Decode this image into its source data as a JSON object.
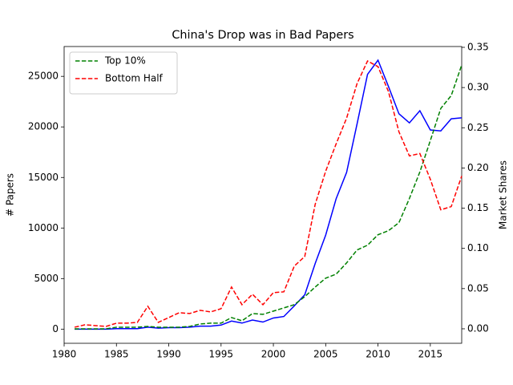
{
  "chart_data": {
    "type": "line",
    "title": "China's Drop was in Bad Papers",
    "ylabel": "# Papers",
    "y2label": "Market Shares",
    "x": [
      1981,
      1982,
      1983,
      1984,
      1985,
      1986,
      1987,
      1988,
      1989,
      1990,
      1991,
      1992,
      1993,
      1994,
      1995,
      1996,
      1997,
      1998,
      1999,
      2000,
      2001,
      2002,
      2003,
      2004,
      2005,
      2006,
      2007,
      2008,
      2009,
      2010,
      2011,
      2012,
      2013,
      2014,
      2015,
      2016,
      2017,
      2018
    ],
    "xlim": [
      1980,
      2018
    ],
    "xticks": [
      1980,
      1985,
      1990,
      1995,
      2000,
      2005,
      2010,
      2015
    ],
    "ylim": [
      -1400,
      27950
    ],
    "yticks": [
      0,
      5000,
      10000,
      15000,
      20000,
      25000
    ],
    "y2lim": [
      -0.018,
      0.351
    ],
    "y2ticks": [
      {
        "value": 0,
        "label": "0.00"
      },
      {
        "value": 0.05,
        "label": "0.05"
      },
      {
        "value": 0.1,
        "label": "0.10"
      },
      {
        "value": 0.15,
        "label": "0.15"
      },
      {
        "value": 0.2,
        "label": "0.20"
      },
      {
        "value": 0.25,
        "label": "0.25"
      },
      {
        "value": 0.3,
        "label": "0.30"
      },
      {
        "value": 0.35,
        "label": "0.35"
      }
    ],
    "legend": "upper left",
    "series": [
      {
        "color": "#0000ff",
        "style": "solid",
        "values": [
          0,
          0,
          0,
          0,
          50,
          50,
          50,
          200,
          100,
          150,
          150,
          200,
          300,
          300,
          400,
          800,
          600,
          900,
          700,
          1100,
          1250,
          2300,
          3400,
          6500,
          9300,
          12900,
          15500,
          20300,
          25200,
          26600,
          24000,
          21300,
          20400,
          21600,
          19700,
          19600,
          20800,
          20900
        ]
      },
      {
        "name": "Top 10%",
        "color": "#008000",
        "style": "dashed",
        "axis": "y2",
        "values": [
          0,
          0,
          0,
          0,
          0.002,
          0.002,
          0.002,
          0.003,
          0.002,
          0.002,
          0.002,
          0.003,
          0.006,
          0.007,
          0.007,
          0.014,
          0.01,
          0.019,
          0.018,
          0.022,
          0.026,
          0.03,
          0.04,
          0.052,
          0.063,
          0.068,
          0.082,
          0.098,
          0.104,
          0.117,
          0.122,
          0.132,
          0.162,
          0.195,
          0.234,
          0.274,
          0.29,
          0.328
        ]
      },
      {
        "name": "Bottom Half",
        "color": "#ff0000",
        "style": "dashed",
        "axis": "y2",
        "values": [
          0.002,
          0.005,
          0.004,
          0.003,
          0.007,
          0.007,
          0.008,
          0.028,
          0.008,
          0.014,
          0.02,
          0.019,
          0.023,
          0.021,
          0.025,
          0.052,
          0.03,
          0.043,
          0.03,
          0.045,
          0.046,
          0.078,
          0.09,
          0.155,
          0.196,
          0.23,
          0.262,
          0.305,
          0.333,
          0.326,
          0.295,
          0.245,
          0.215,
          0.218,
          0.186,
          0.148,
          0.152,
          0.19
        ]
      }
    ]
  }
}
